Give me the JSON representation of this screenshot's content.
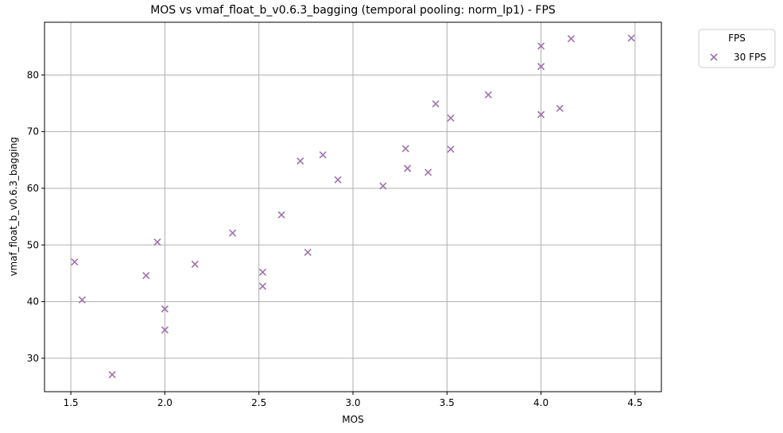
{
  "chart_data": {
    "type": "scatter",
    "title": "MOS vs vmaf_float_b_v0.6.3_bagging (temporal pooling: norm_lp1) - FPS",
    "xlabel": "MOS",
    "ylabel": "vmaf_float_b_v0.6.3_bagging",
    "xlim": [
      1.36,
      4.64
    ],
    "ylim": [
      24.1,
      89.3
    ],
    "xticks": [
      1.5,
      2.0,
      2.5,
      3.0,
      3.5,
      4.0,
      4.5
    ],
    "xtick_labels": [
      "1.5",
      "2.0",
      "2.5",
      "3.0",
      "3.5",
      "4.0",
      "4.5"
    ],
    "yticks": [
      30,
      40,
      50,
      60,
      70,
      80
    ],
    "ytick_labels": [
      "30",
      "40",
      "50",
      "60",
      "70",
      "80"
    ],
    "grid": true,
    "legend": {
      "title": "FPS",
      "placement": "outside-top-right"
    },
    "marker": "x",
    "series": [
      {
        "name": "30 FPS",
        "color": "#9e72ad",
        "points": [
          {
            "x": 1.52,
            "y": 47.0
          },
          {
            "x": 1.56,
            "y": 40.3
          },
          {
            "x": 1.72,
            "y": 27.1
          },
          {
            "x": 1.9,
            "y": 44.6
          },
          {
            "x": 1.96,
            "y": 50.5
          },
          {
            "x": 2.0,
            "y": 38.7
          },
          {
            "x": 2.0,
            "y": 35.0
          },
          {
            "x": 2.16,
            "y": 46.6
          },
          {
            "x": 2.36,
            "y": 52.1
          },
          {
            "x": 2.52,
            "y": 45.2
          },
          {
            "x": 2.52,
            "y": 42.7
          },
          {
            "x": 2.62,
            "y": 55.3
          },
          {
            "x": 2.72,
            "y": 64.8
          },
          {
            "x": 2.76,
            "y": 48.7
          },
          {
            "x": 2.84,
            "y": 65.9
          },
          {
            "x": 2.92,
            "y": 61.5
          },
          {
            "x": 3.16,
            "y": 60.4
          },
          {
            "x": 3.28,
            "y": 67.0
          },
          {
            "x": 3.29,
            "y": 63.5
          },
          {
            "x": 3.4,
            "y": 62.8
          },
          {
            "x": 3.44,
            "y": 74.9
          },
          {
            "x": 3.52,
            "y": 72.4
          },
          {
            "x": 3.52,
            "y": 66.9
          },
          {
            "x": 3.72,
            "y": 76.5
          },
          {
            "x": 4.0,
            "y": 85.1
          },
          {
            "x": 4.0,
            "y": 81.5
          },
          {
            "x": 4.0,
            "y": 73.0
          },
          {
            "x": 4.1,
            "y": 74.1
          },
          {
            "x": 4.16,
            "y": 86.4
          },
          {
            "x": 4.48,
            "y": 86.5
          }
        ]
      }
    ]
  }
}
